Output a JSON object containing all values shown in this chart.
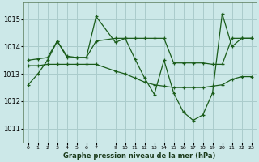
{
  "title": "Graphe pression niveau de la mer (hPa)",
  "bg_color": "#cce8e8",
  "grid_color": "#aacccc",
  "line_color": "#1a5c1a",
  "xlim": [
    -0.5,
    23.5
  ],
  "ylim": [
    1010.5,
    1015.6
  ],
  "yticks": [
    1011,
    1012,
    1013,
    1014,
    1015
  ],
  "xticks": [
    0,
    1,
    2,
    3,
    4,
    5,
    6,
    7,
    9,
    10,
    11,
    12,
    13,
    14,
    15,
    16,
    17,
    18,
    19,
    20,
    21,
    22,
    23
  ],
  "series": [
    {
      "x": [
        0,
        1,
        2,
        3,
        4,
        5,
        6,
        7,
        9,
        10,
        11,
        12,
        13,
        14,
        15,
        16,
        17,
        18,
        19,
        20,
        21,
        22,
        23
      ],
      "y": [
        1012.6,
        1013.0,
        1013.5,
        1014.2,
        1013.6,
        1013.6,
        1013.6,
        1015.1,
        1014.15,
        1014.3,
        1013.55,
        1012.85,
        1012.25,
        1013.5,
        1012.3,
        1011.6,
        1011.3,
        1011.5,
        1012.3,
        1015.2,
        1014.0,
        1014.3,
        1014.3
      ]
    },
    {
      "x": [
        0,
        1,
        2,
        3,
        4,
        5,
        6,
        7,
        9,
        10,
        11,
        12,
        13,
        14,
        15,
        16,
        17,
        18,
        19,
        20,
        21,
        22,
        23
      ],
      "y": [
        1013.5,
        1013.55,
        1013.6,
        1014.2,
        1013.65,
        1013.6,
        1013.6,
        1014.2,
        1014.3,
        1014.3,
        1014.3,
        1014.3,
        1014.3,
        1014.3,
        1013.4,
        1013.4,
        1013.4,
        1013.4,
        1013.35,
        1013.35,
        1014.3,
        1014.3,
        1014.3
      ]
    },
    {
      "x": [
        0,
        1,
        2,
        3,
        4,
        5,
        6,
        7,
        9,
        10,
        11,
        12,
        13,
        14,
        15,
        16,
        17,
        18,
        19,
        20,
        21,
        22,
        23
      ],
      "y": [
        1013.3,
        1013.3,
        1013.35,
        1013.35,
        1013.35,
        1013.35,
        1013.35,
        1013.35,
        1013.1,
        1013.0,
        1012.85,
        1012.7,
        1012.6,
        1012.55,
        1012.5,
        1012.5,
        1012.5,
        1012.5,
        1012.55,
        1012.6,
        1012.8,
        1012.9,
        1012.9
      ]
    }
  ]
}
